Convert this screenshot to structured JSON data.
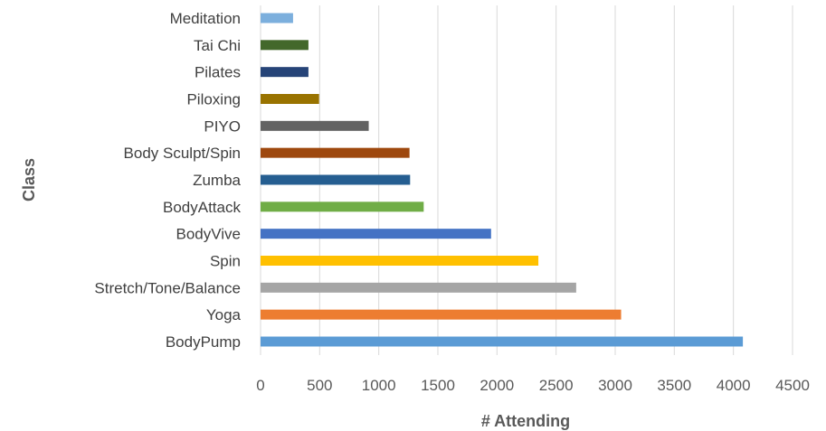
{
  "chart_data": {
    "type": "bar",
    "orientation": "horizontal",
    "xlabel": "# Attending",
    "ylabel": "Class",
    "xlim": [
      0,
      4500
    ],
    "x_ticks": [
      0,
      500,
      1000,
      1500,
      2000,
      2500,
      3000,
      3500,
      4000,
      4500
    ],
    "grid": true,
    "categories": [
      "BodyPump",
      "Yoga",
      "Stretch/Tone/Balance",
      "Spin",
      "BodyVive",
      "BodyAttack",
      "Zumba",
      "Body Sculpt/Spin",
      "PIYO",
      "Piloxing",
      "Pilates",
      "Tai Chi",
      "Meditation"
    ],
    "values": [
      4080,
      3050,
      2670,
      2350,
      1950,
      1380,
      1265,
      1260,
      915,
      495,
      405,
      405,
      275
    ],
    "colors": [
      "#5b9bd5",
      "#ed7d31",
      "#a5a5a5",
      "#ffc000",
      "#4472c4",
      "#70ad47",
      "#255e91",
      "#9e480e",
      "#636363",
      "#997300",
      "#264478",
      "#43682b",
      "#7cafdd"
    ]
  }
}
